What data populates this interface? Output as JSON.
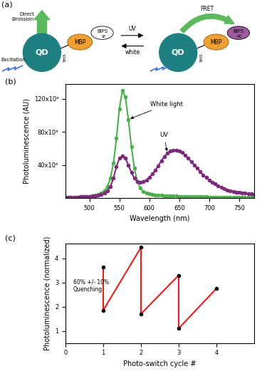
{
  "diagram": {
    "label": "(a)",
    "left": {
      "qd": "QD",
      "protein": "MBP",
      "dye": "BIPS",
      "dye_state": "SP",
      "tag": "5HIS",
      "emission": "Direct\nEmission",
      "excitation": "Excitation"
    },
    "switch": {
      "forward": "UV",
      "back": "white"
    },
    "right": {
      "qd": "QD",
      "protein": "MBP",
      "dye": "BIPS",
      "dye_state": "MC",
      "tag": "5HIS",
      "transfer": "FRET"
    }
  },
  "chart_data": [
    {
      "type": "line",
      "title": "(b)",
      "x_label": "Wavelength (nm)",
      "y_label": "Photoluminescence (AU)",
      "x": [
        460,
        465,
        470,
        475,
        480,
        485,
        490,
        495,
        500,
        505,
        510,
        515,
        520,
        525,
        530,
        535,
        540,
        545,
        550,
        555,
        560,
        565,
        570,
        575,
        580,
        585,
        590,
        595,
        600,
        605,
        610,
        615,
        620,
        625,
        630,
        635,
        640,
        645,
        650,
        655,
        660,
        665,
        670,
        675,
        680,
        685,
        690,
        695,
        700,
        705,
        710,
        715,
        720,
        725,
        730,
        735,
        740,
        745,
        750,
        755,
        760,
        765,
        770,
        775
      ],
      "series": [
        {
          "name": "White light",
          "color": "#4cae4c",
          "marker": "o",
          "values": [
            1000000.0,
            1000000.0,
            1000000.0,
            1200000.0,
            1400000.0,
            1600000.0,
            1800000.0,
            2000000.0,
            2300000.0,
            2800000.0,
            3500000.0,
            4500000.0,
            6000000.0,
            9000000.0,
            14000000.0,
            24000000.0,
            42000000.0,
            72000000.0,
            108000000.0,
            130000000.0,
            122000000.0,
            95000000.0,
            62000000.0,
            36000000.0,
            20000000.0,
            12000000.0,
            8000000.0,
            6000000.0,
            5000000.0,
            4500000.0,
            4000000.0,
            3600000.0,
            3300000.0,
            3000000.0,
            2800000.0,
            2600000.0,
            2500000.0,
            2400000.0,
            2300000.0,
            2200000.0,
            2100000.0,
            2000000.0,
            1900000.0,
            1800000.0,
            1700000.0,
            1600000.0,
            1500000.0,
            1500000.0,
            1400000.0,
            1400000.0,
            1300000.0,
            1300000.0,
            1200000.0,
            1200000.0,
            1100000.0,
            1100000.0,
            1000000.0,
            1000000.0,
            1000000.0,
            1000000.0,
            1000000.0,
            1000000.0,
            1000000.0,
            1000000.0
          ]
        },
        {
          "name": "UV",
          "color": "#7a2a78",
          "marker": "o",
          "values": [
            1000000.0,
            1000000.0,
            1000000.0,
            1200000.0,
            1400000.0,
            1600000.0,
            1800000.0,
            2000000.0,
            2300000.0,
            2600000.0,
            3000000.0,
            3600000.0,
            4500000.0,
            6000000.0,
            9000000.0,
            14000000.0,
            24000000.0,
            38000000.0,
            48000000.0,
            51000000.0,
            48000000.0,
            40000000.0,
            31000000.0,
            24000000.0,
            20000000.0,
            19000000.0,
            20000000.0,
            22000000.0,
            25000000.0,
            29000000.0,
            34000000.0,
            39000000.0,
            45000000.0,
            50000000.0,
            54000000.0,
            57000000.0,
            58000000.0,
            58000000.0,
            57000000.0,
            55000000.0,
            52000000.0,
            48000000.0,
            44000000.0,
            40000000.0,
            36000000.0,
            32000000.0,
            28000000.0,
            25000000.0,
            22000000.0,
            19000000.0,
            17000000.0,
            15000000.0,
            13000000.0,
            11500000.0,
            10000000.0,
            9000000.0,
            8000000.0,
            7300000.0,
            6700000.0,
            6200000.0,
            5800000.0,
            5400000.0,
            5100000.0,
            4800000.0
          ]
        }
      ],
      "xlim": [
        460,
        775
      ],
      "xticks": [
        500,
        550,
        600,
        650,
        700,
        750
      ],
      "ylim": [
        0,
        138000000.0
      ],
      "yticks": [
        {
          "value": 40000000,
          "label": "40x10⁶"
        },
        {
          "value": 80000000,
          "label": "80x10⁶"
        },
        {
          "value": 120000000,
          "label": "120x10⁶"
        }
      ]
    },
    {
      "type": "line",
      "title": "(c)",
      "x_label": "Photo-switch cycle #",
      "y_label": "Photoluminescence (normalized)",
      "x": [
        1,
        1,
        2,
        2,
        3,
        3,
        4
      ],
      "series": [
        {
          "color": "#e02020",
          "marker": "o",
          "values": [
            3.65,
            1.85,
            4.45,
            1.7,
            3.3,
            1.1,
            2.75
          ]
        }
      ],
      "annotations": [
        "60% +/- 10%\nQuenching"
      ],
      "xlim": [
        0,
        5
      ],
      "xticks": [
        0,
        1,
        2,
        3,
        4
      ],
      "ylim": [
        0.5,
        4.6
      ],
      "yticks": [
        1,
        2,
        3,
        4
      ]
    }
  ]
}
